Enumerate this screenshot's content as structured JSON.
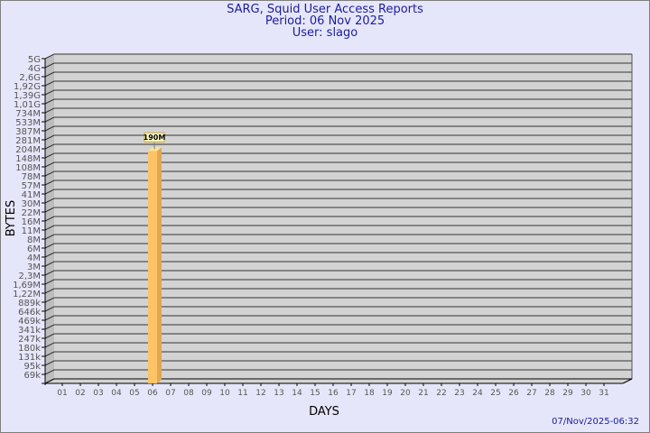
{
  "chart_data": {
    "type": "bar",
    "title": "SARG, Squid User Access Reports",
    "subtitle_period": "Period: 06 Nov 2025",
    "subtitle_user": "User: slago",
    "xlabel": "DAYS",
    "ylabel": "BYTES",
    "yscale": "log",
    "grid": true,
    "y_tick_labels": [
      "5G",
      "4G",
      "2,6G",
      "1,92G",
      "1,39G",
      "1,01G",
      "734M",
      "533M",
      "387M",
      "281M",
      "204M",
      "148M",
      "108M",
      "78M",
      "57M",
      "41M",
      "30M",
      "22M",
      "16M",
      "11M",
      "8M",
      "6M",
      "4M",
      "3M",
      "2,3M",
      "1,69M",
      "1,22M",
      "889k",
      "646k",
      "469k",
      "341k",
      "247k",
      "180k",
      "131k",
      "95k",
      "69k"
    ],
    "categories": [
      "01",
      "02",
      "03",
      "04",
      "05",
      "06",
      "07",
      "08",
      "09",
      "10",
      "11",
      "12",
      "13",
      "14",
      "15",
      "16",
      "17",
      "18",
      "19",
      "20",
      "21",
      "22",
      "23",
      "24",
      "25",
      "26",
      "27",
      "28",
      "29",
      "30",
      "31"
    ],
    "bars": [
      {
        "category": "06",
        "value_label": "190M",
        "value_bytes": 190000000
      }
    ],
    "bar_color": "#fcc466",
    "plot_background": "#d3d3d3",
    "footer_timestamp": "07/Nov/2025-06:32"
  }
}
